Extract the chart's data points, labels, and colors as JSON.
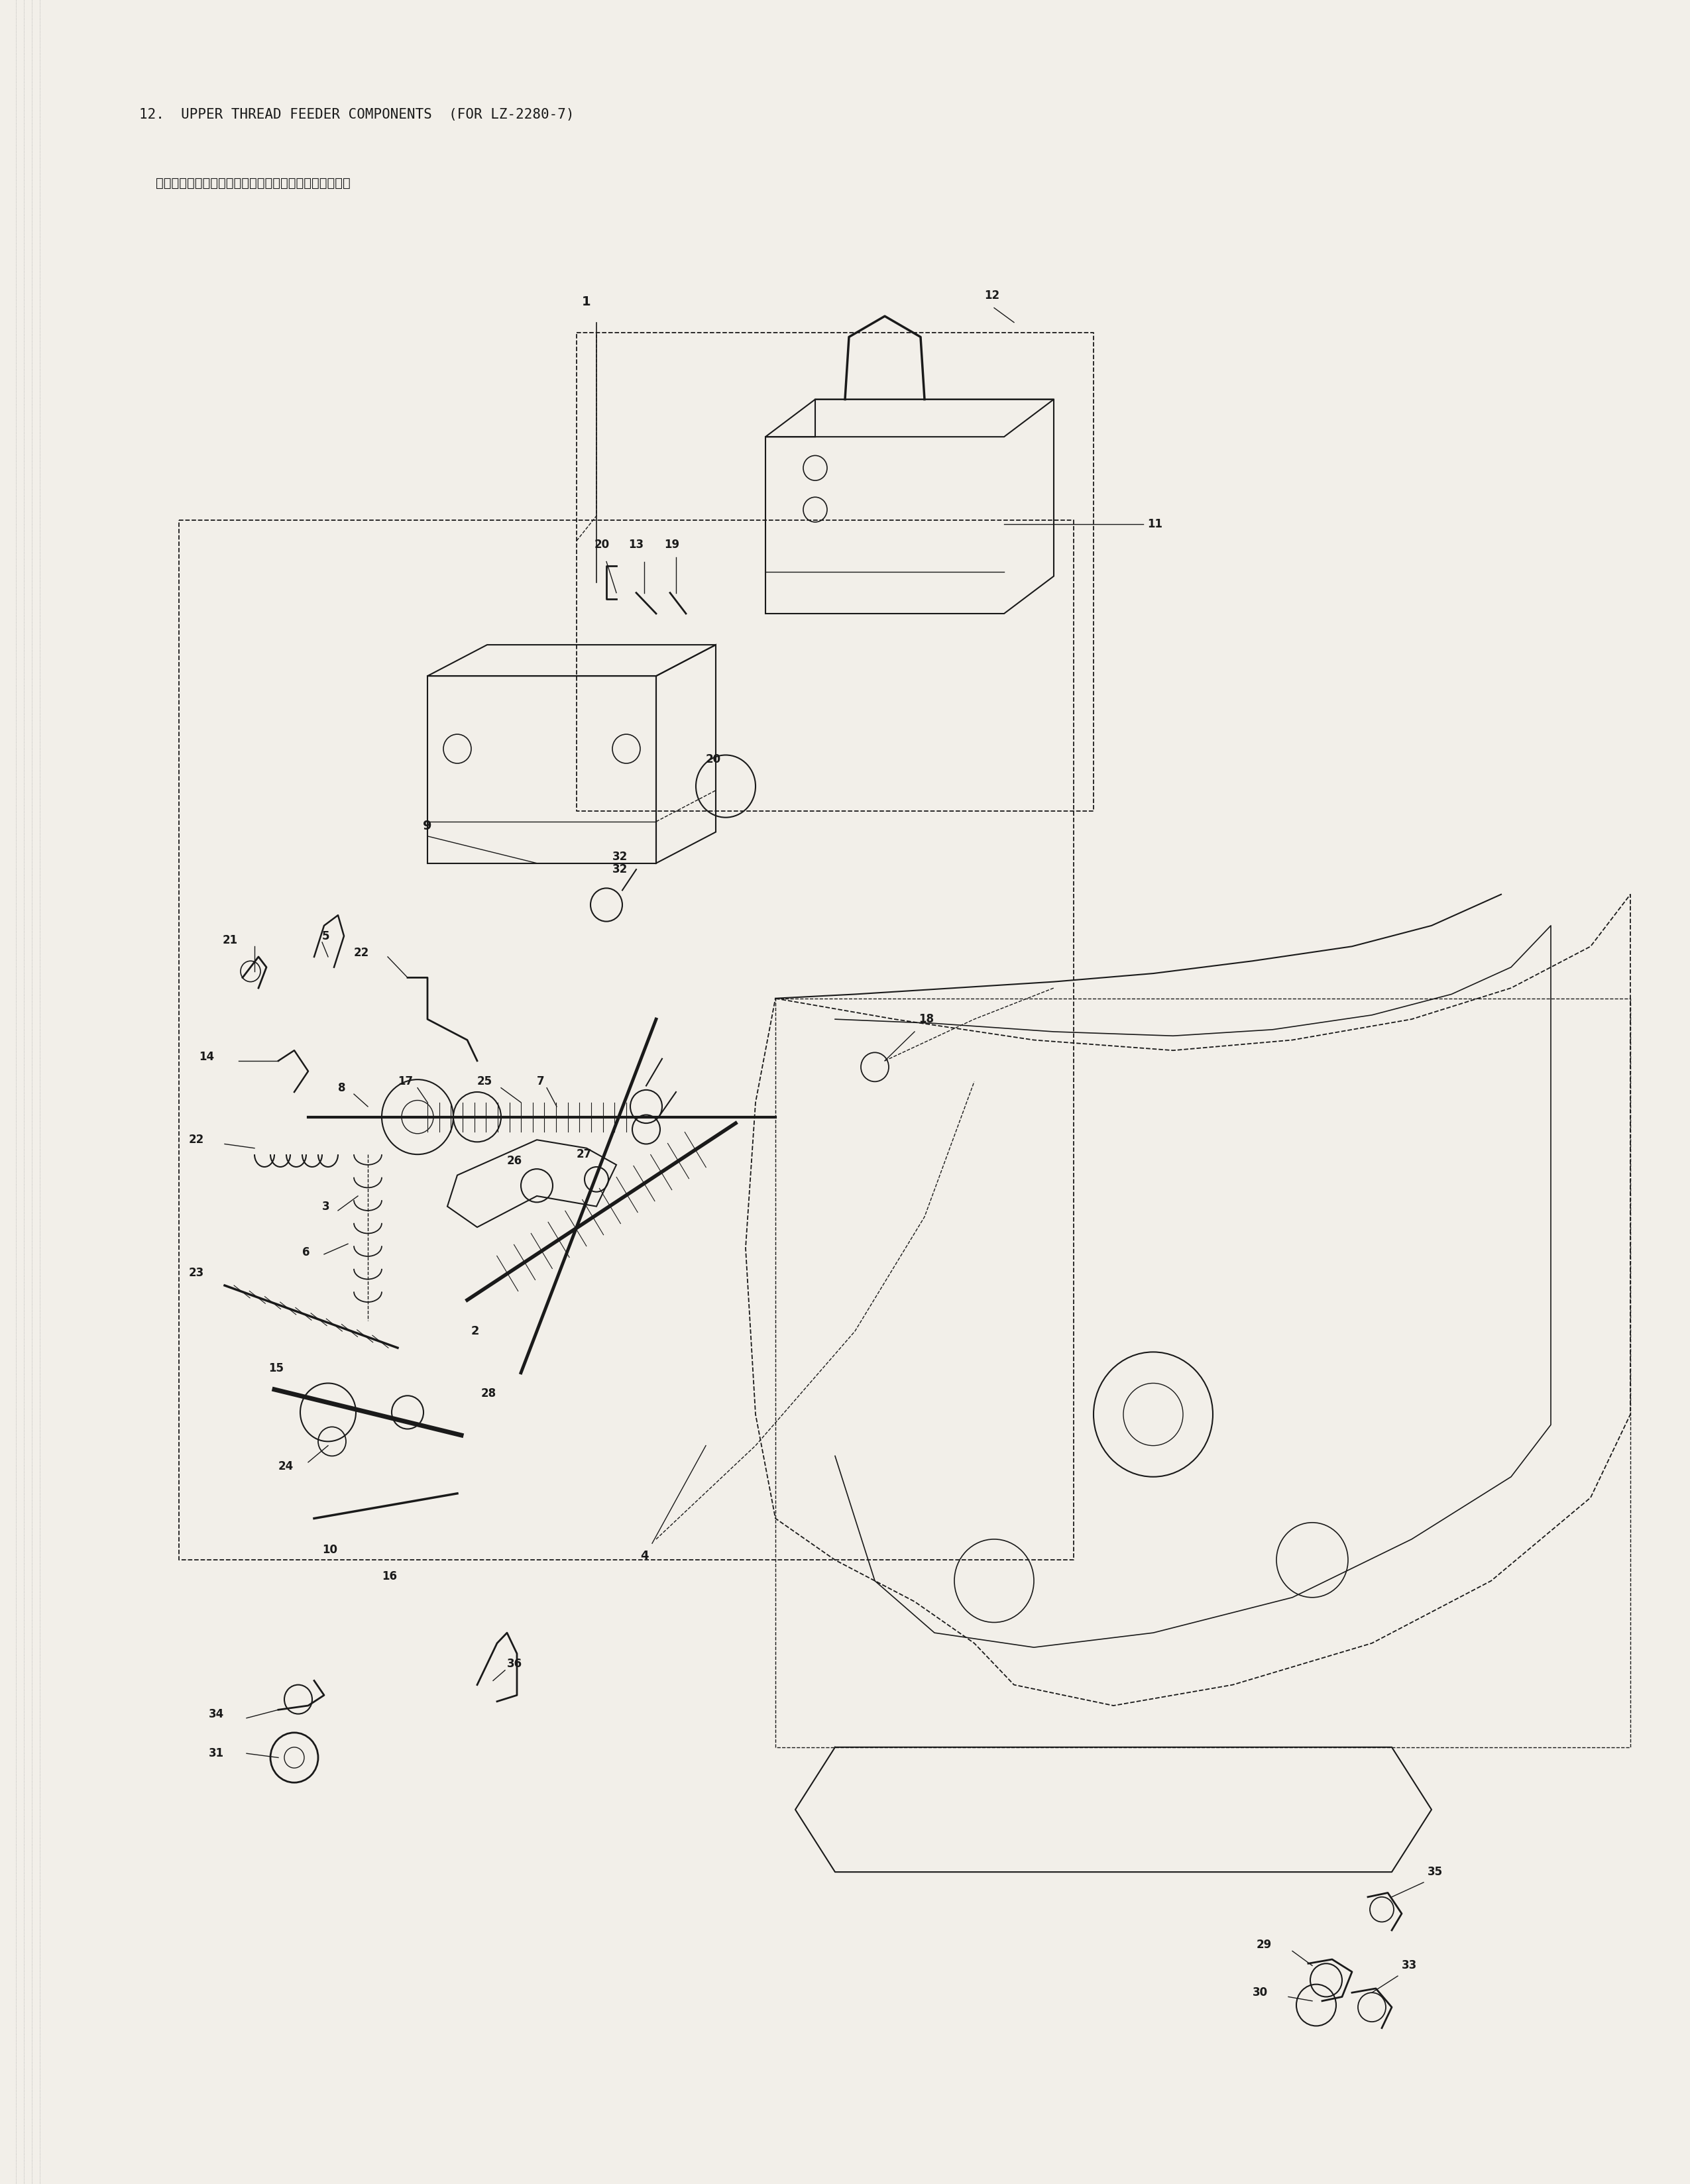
{
  "title_line1": "12.  UPPER THREAD FEEDER COMPONENTS  (FOR LZ-2280-7)",
  "title_line2": "    上糸繰り出し装置関係（ＬＺ－２２８０－７専用部品）",
  "page_bg": "#f2efe9",
  "line_color": "#1a1a1a",
  "lw_main": 1.5,
  "lw_thin": 1.0,
  "lw_thick": 2.5,
  "fs_label": 13,
  "fs_title1": 15,
  "fs_title2": 14
}
